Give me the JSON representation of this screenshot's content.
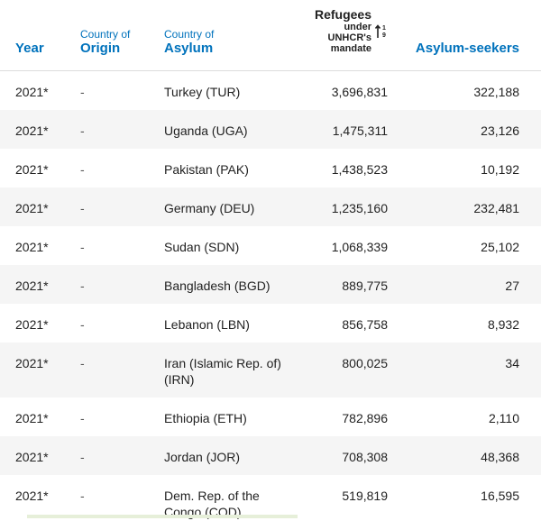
{
  "header": {
    "year": "Year",
    "origin_small": "Country of",
    "origin_big": "Origin",
    "asylum_small": "Country of",
    "asylum_big": "Asylum",
    "refugees_line1": "Refugees",
    "refugees_line2": "under",
    "refugees_line3": "UNHCR's",
    "refugees_line4": "mandate",
    "asylum_seekers": "Asylum-seekers"
  },
  "rows": [
    {
      "year": "2021*",
      "origin": "-",
      "asylum": "Turkey (TUR)",
      "refugees": "3,696,831",
      "seekers": "322,188"
    },
    {
      "year": "2021*",
      "origin": "-",
      "asylum": "Uganda (UGA)",
      "refugees": "1,475,311",
      "seekers": "23,126"
    },
    {
      "year": "2021*",
      "origin": "-",
      "asylum": "Pakistan (PAK)",
      "refugees": "1,438,523",
      "seekers": "10,192"
    },
    {
      "year": "2021*",
      "origin": "-",
      "asylum": "Germany (DEU)",
      "refugees": "1,235,160",
      "seekers": "232,481"
    },
    {
      "year": "2021*",
      "origin": "-",
      "asylum": "Sudan (SDN)",
      "refugees": "1,068,339",
      "seekers": "25,102"
    },
    {
      "year": "2021*",
      "origin": "-",
      "asylum": "Bangladesh (BGD)",
      "refugees": "889,775",
      "seekers": "27"
    },
    {
      "year": "2021*",
      "origin": "-",
      "asylum": "Lebanon (LBN)",
      "refugees": "856,758",
      "seekers": "8,932"
    },
    {
      "year": "2021*",
      "origin": "-",
      "asylum": "Iran (Islamic Rep. of) (IRN)",
      "refugees": "800,025",
      "seekers": "34"
    },
    {
      "year": "2021*",
      "origin": "-",
      "asylum": "Ethiopia (ETH)",
      "refugees": "782,896",
      "seekers": "2,110"
    },
    {
      "year": "2021*",
      "origin": "-",
      "asylum": "Jordan (JOR)",
      "refugees": "708,308",
      "seekers": "48,368"
    },
    {
      "year": "2021*",
      "origin": "-",
      "asylum": "Dem. Rep. of the Congo (COD)",
      "refugees": "519,819",
      "seekers": "16,595"
    }
  ],
  "icons": {
    "sort": "sort-desc-icon"
  },
  "colors": {
    "header_accent": "#0072bc",
    "row_shade": "#f5f5f5"
  }
}
